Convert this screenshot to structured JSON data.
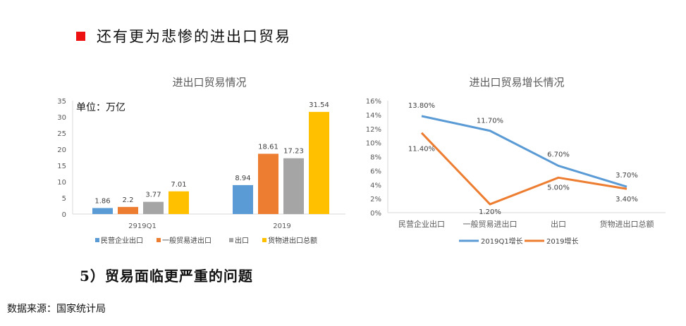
{
  "slide": {
    "heading": "还有更为悲惨的进出口贸易",
    "subheading": "5）贸易面临更严重的问题",
    "source": "数据来源：国家统计局"
  },
  "colors": {
    "accent_red": "#ee1111",
    "series_blue": "#5b9bd5",
    "series_orange": "#ed7d31",
    "series_gray": "#a5a5a5",
    "series_yellow": "#ffc000"
  },
  "chart_data": [
    {
      "type": "bar",
      "title": "进出口贸易情况",
      "unit_label": "单位：万亿",
      "categories": [
        "2919Q1",
        "2019"
      ],
      "series": [
        {
          "name": "民营企业出口",
          "values": [
            1.86,
            8.94
          ]
        },
        {
          "name": "一般贸易进出口",
          "values": [
            2.2,
            18.61
          ]
        },
        {
          "name": "出口",
          "values": [
            3.77,
            17.23
          ]
        },
        {
          "name": "货物进出口总额",
          "values": [
            7.01,
            31.54
          ]
        }
      ],
      "value_labels": [
        [
          "1.86",
          "8.94"
        ],
        [
          "2.2",
          "18.61"
        ],
        [
          "3.77",
          "17.23"
        ],
        [
          "7.01",
          "31.54"
        ]
      ],
      "ylim": [
        0,
        35
      ],
      "yticks": [
        0,
        5,
        10,
        15,
        20,
        25,
        30,
        35
      ],
      "ytick_labels": [
        "0",
        "5",
        "10",
        "15",
        "20",
        "25",
        "30",
        "35"
      ],
      "grid": false,
      "legend": "bottom"
    },
    {
      "type": "line",
      "title": "进出口贸易增长情况",
      "categories": [
        "民营企业出口",
        "一般贸易进出口",
        "出口",
        "货物进出口总额"
      ],
      "series": [
        {
          "name": "2019Q1增长",
          "values": [
            13.8,
            11.7,
            6.7,
            3.7
          ],
          "labels": [
            "13.80%",
            "11.70%",
            "6.70%",
            "3.70%"
          ]
        },
        {
          "name": "2019增长",
          "values": [
            11.4,
            1.2,
            5.0,
            3.4
          ],
          "labels": [
            "11.40%",
            "1.20%",
            "5.00%",
            "3.40%"
          ]
        }
      ],
      "ylim": [
        0,
        16
      ],
      "yticks": [
        0,
        2,
        4,
        6,
        8,
        10,
        12,
        14,
        16
      ],
      "ytick_labels": [
        "0%",
        "2%",
        "4%",
        "6%",
        "8%",
        "10%",
        "12%",
        "14%",
        "16%"
      ],
      "grid": false,
      "legend": "bottom"
    }
  ]
}
